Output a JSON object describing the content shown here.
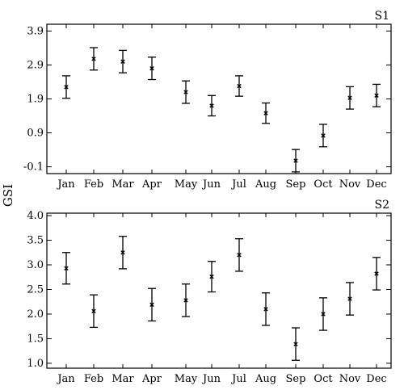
{
  "ylabel": "GSI",
  "chart_data": [
    {
      "type": "scatter",
      "panel_label": "S1",
      "categories": [
        "Jan",
        "Feb",
        "Mar",
        "Apr",
        "May",
        "Jun",
        "Jul",
        "Aug",
        "Sep",
        "Oct",
        "Nov",
        "Dec"
      ],
      "values": [
        2.25,
        3.08,
        3.0,
        2.8,
        2.1,
        1.7,
        2.28,
        1.48,
        0.08,
        0.82,
        1.93,
        2.0
      ],
      "error": [
        0.33,
        0.33,
        0.33,
        0.33,
        0.33,
        0.3,
        0.3,
        0.3,
        0.33,
        0.33,
        0.33,
        0.33
      ],
      "ylim": [
        -0.3,
        4.1
      ],
      "yticks": [
        3.9,
        2.9,
        1.9,
        0.9,
        -0.1
      ],
      "ytick_labels": [
        "3.9",
        "2.9",
        "1.9",
        "0.9",
        "-0.1"
      ],
      "xlabel": "",
      "ylabel": "GSI",
      "grid": false
    },
    {
      "type": "scatter",
      "panel_label": "S2",
      "categories": [
        "Jan",
        "Feb",
        "Mar",
        "Apr",
        "May",
        "Jun",
        "Jul",
        "Aug",
        "Sep",
        "Oct",
        "Nov",
        "Dec"
      ],
      "values": [
        2.93,
        2.06,
        3.25,
        2.19,
        2.28,
        2.76,
        3.2,
        2.1,
        1.39,
        2.0,
        2.31,
        2.82
      ],
      "error": [
        0.32,
        0.33,
        0.33,
        0.33,
        0.33,
        0.31,
        0.33,
        0.33,
        0.33,
        0.33,
        0.33,
        0.33
      ],
      "ylim": [
        0.9,
        4.05
      ],
      "yticks": [
        4.0,
        3.5,
        3.0,
        2.5,
        2.0,
        1.5,
        1.0
      ],
      "ytick_labels": [
        "4.0",
        "3.5",
        "3.0",
        "2.5",
        "2.0",
        "1.5",
        "1.0"
      ],
      "xlabel": "",
      "ylabel": "GSI",
      "grid": false
    }
  ]
}
